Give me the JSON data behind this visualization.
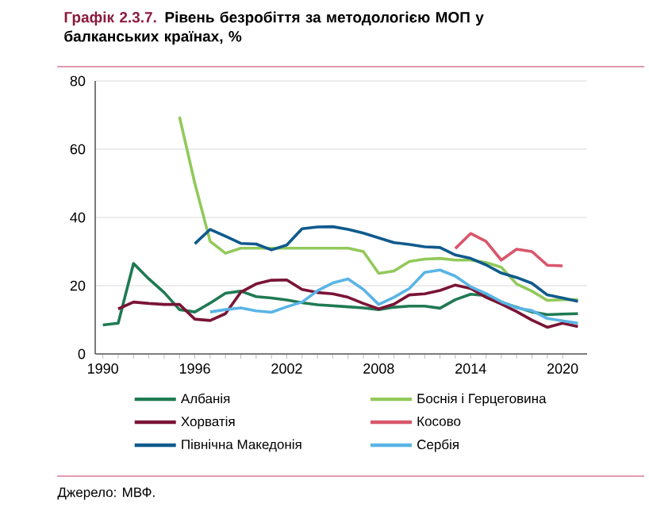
{
  "chart_data": {
    "type": "line",
    "title": "Графік 2.3.7.",
    "subtitle": "Рівень безробіття за методологією МОП у балканських країнах, %",
    "annotations": [
      "Джерело: МВФ."
    ],
    "xlim": [
      1989.5,
      2021.6
    ],
    "xticks": [
      1990,
      1996,
      2002,
      2008,
      2014,
      2020
    ],
    "ylim": [
      0,
      80
    ],
    "yticks": [
      0,
      20,
      40,
      60,
      80
    ],
    "grid": "y",
    "legend": "bottom",
    "series": [
      {
        "name": "Албанія",
        "color": "#1f7a52",
        "x": [
          1990,
          1991,
          1992,
          1993,
          1994,
          1995,
          1996,
          1997,
          1998,
          1999,
          2000,
          2001,
          2002,
          2003,
          2004,
          2005,
          2006,
          2007,
          2008,
          2009,
          2010,
          2011,
          2012,
          2013,
          2014,
          2015,
          2016,
          2017,
          2018,
          2019,
          2020,
          2021
        ],
        "values": [
          8.5,
          9,
          26.5,
          22,
          18,
          13,
          12.3,
          14.9,
          17.8,
          18.4,
          16.8,
          16.4,
          15.8,
          15,
          14.4,
          14.1,
          13.8,
          13.5,
          13,
          13.7,
          14,
          14,
          13.4,
          15.9,
          17.5,
          17.1,
          15.2,
          13.7,
          12.3,
          11.5,
          11.7,
          11.8
        ]
      },
      {
        "name": "Боснія і Герцеговина",
        "color": "#92c95a",
        "x": [
          1995,
          1996,
          1997,
          1998,
          1999,
          2000,
          2001,
          2002,
          2003,
          2004,
          2005,
          2006,
          2007,
          2008,
          2009,
          2010,
          2011,
          2012,
          2013,
          2014,
          2015,
          2016,
          2017,
          2018,
          2019,
          2020,
          2021
        ],
        "values": [
          69.5,
          50,
          33,
          29.5,
          31,
          31,
          31,
          31,
          31,
          31,
          31,
          31,
          30,
          23.6,
          24.3,
          27.1,
          27.8,
          28,
          27.5,
          27.5,
          26.8,
          25.4,
          20.5,
          18.4,
          15.7,
          15.9,
          15.9
        ]
      },
      {
        "name": "Хорватія",
        "color": "#7a1436",
        "x": [
          1991,
          1992,
          1993,
          1994,
          1995,
          1996,
          1997,
          1998,
          1999,
          2000,
          2001,
          2002,
          2003,
          2004,
          2005,
          2006,
          2007,
          2008,
          2009,
          2010,
          2011,
          2012,
          2013,
          2014,
          2015,
          2016,
          2017,
          2018,
          2019,
          2020,
          2021
        ],
        "values": [
          13.2,
          15.2,
          14.8,
          14.5,
          14.5,
          10.2,
          9.8,
          11.8,
          18.1,
          20.5,
          21.6,
          21.7,
          18.9,
          18,
          17.6,
          16.6,
          14.8,
          13.2,
          14.6,
          17.3,
          17.6,
          18.6,
          20.2,
          19.2,
          16.6,
          14.6,
          12.4,
          9.9,
          7.8,
          9,
          8
        ]
      },
      {
        "name": "Косово",
        "color": "#d9566b",
        "x": [
          2013,
          2014,
          2015,
          2016,
          2017,
          2018,
          2019,
          2020
        ],
        "values": [
          30.9,
          35.3,
          33,
          27.5,
          30.7,
          30,
          26,
          25.8
        ]
      },
      {
        "name": "Північна Македонія",
        "color": "#0f5a8c",
        "x": [
          1996,
          1997,
          1998,
          1999,
          2000,
          2001,
          2002,
          2003,
          2004,
          2005,
          2006,
          2007,
          2008,
          2009,
          2010,
          2011,
          2012,
          2013,
          2014,
          2015,
          2016,
          2017,
          2018,
          2019,
          2020,
          2021
        ],
        "values": [
          32.3,
          36.5,
          34.5,
          32.4,
          32.2,
          30.5,
          31.9,
          36.7,
          37.2,
          37.3,
          36.5,
          35.4,
          34,
          32.6,
          32.1,
          31.4,
          31.2,
          29,
          28,
          26.1,
          23.7,
          22.4,
          20.7,
          17.3,
          16.4,
          15.4
        ]
      },
      {
        "name": "Сербія",
        "color": "#5ab4e5",
        "x": [
          1997,
          1998,
          1999,
          2000,
          2001,
          2002,
          2003,
          2004,
          2005,
          2006,
          2007,
          2008,
          2009,
          2010,
          2011,
          2012,
          2013,
          2014,
          2015,
          2016,
          2017,
          2018,
          2019,
          2020,
          2021
        ],
        "values": [
          12.3,
          13,
          13.5,
          12.6,
          12.2,
          13.8,
          15.2,
          18.5,
          20.8,
          22,
          18.9,
          14.5,
          16.6,
          19.2,
          23.9,
          24.6,
          22.8,
          19.7,
          17.7,
          15.3,
          13.5,
          12.7,
          10.4,
          9.7,
          9
        ]
      }
    ]
  }
}
